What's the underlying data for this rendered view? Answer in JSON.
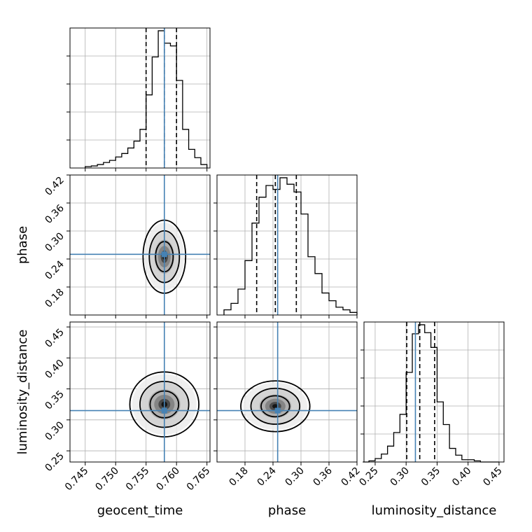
{
  "chart_data": {
    "type": "corner",
    "parameters": [
      "geocent_time",
      "phase",
      "luminosity_distance"
    ],
    "truths": {
      "geocent_time": 0.758,
      "phase": 0.25,
      "luminosity_distance": 0.315
    },
    "quantile_lines": {
      "geocent_time": [
        0.755,
        0.758,
        0.76
      ],
      "phase": [
        0.205,
        0.245,
        0.29
      ],
      "luminosity_distance": [
        0.301,
        0.322,
        0.346
      ]
    },
    "ranges": {
      "geocent_time": [
        0.7425,
        0.7655
      ],
      "phase": [
        0.12,
        0.42
      ],
      "luminosity_distance": [
        0.232,
        0.458
      ]
    },
    "ticks": {
      "geocent_time": [
        "0.745",
        "0.750",
        "0.755",
        "0.760",
        "0.765"
      ],
      "phase": [
        "0.18",
        "0.24",
        "0.30",
        "0.36",
        "0.42"
      ],
      "luminosity_distance": [
        "0.25",
        "0.30",
        "0.35",
        "0.40",
        "0.45"
      ]
    },
    "histograms": {
      "geocent_time": {
        "edges": [
          0.745,
          0.746,
          0.747,
          0.748,
          0.749,
          0.75,
          0.751,
          0.752,
          0.753,
          0.754,
          0.755,
          0.756,
          0.757,
          0.758,
          0.759,
          0.76,
          0.761,
          0.762,
          0.763,
          0.764,
          0.765
        ],
        "counts": [
          2,
          3,
          5,
          8,
          11,
          16,
          21,
          29,
          39,
          56,
          106,
          161,
          199,
          181,
          177,
          127,
          56,
          27,
          15,
          5
        ]
      },
      "phase": {
        "edges": [
          0.135,
          0.15,
          0.165,
          0.18,
          0.195,
          0.21,
          0.225,
          0.24,
          0.255,
          0.27,
          0.285,
          0.3,
          0.315,
          0.33,
          0.345,
          0.36,
          0.375,
          0.39,
          0.405,
          0.42
        ],
        "counts": [
          4,
          9,
          20,
          42,
          71,
          91,
          100,
          97,
          106,
          101,
          95,
          78,
          45,
          32,
          17,
          11,
          6,
          4,
          2
        ]
      },
      "luminosity_distance": {
        "edges": [
          0.23,
          0.24,
          0.25,
          0.26,
          0.27,
          0.28,
          0.29,
          0.3,
          0.31,
          0.32,
          0.33,
          0.34,
          0.35,
          0.36,
          0.37,
          0.38,
          0.39,
          0.4,
          0.41,
          0.42,
          0.43,
          0.44,
          0.45
        ],
        "counts": [
          0,
          1,
          3,
          7,
          14,
          26,
          42,
          79,
          113,
          121,
          114,
          101,
          53,
          33,
          12,
          6,
          2,
          2,
          1,
          0,
          0,
          0
        ]
      }
    },
    "panels_2d": [
      {
        "x": "geocent_time",
        "y": "phase",
        "x_center": 0.758,
        "y_center": 0.245
      },
      {
        "x": "geocent_time",
        "y": "luminosity_distance",
        "x_center": 0.758,
        "y_center": 0.325
      },
      {
        "x": "phase",
        "y": "luminosity_distance",
        "x_center": 0.245,
        "y_center": 0.322
      }
    ],
    "grid": true,
    "colors": {
      "truth": "#4682b4",
      "hist": "#000000",
      "contour": "#000000",
      "grid": "#b0b0b0"
    }
  }
}
